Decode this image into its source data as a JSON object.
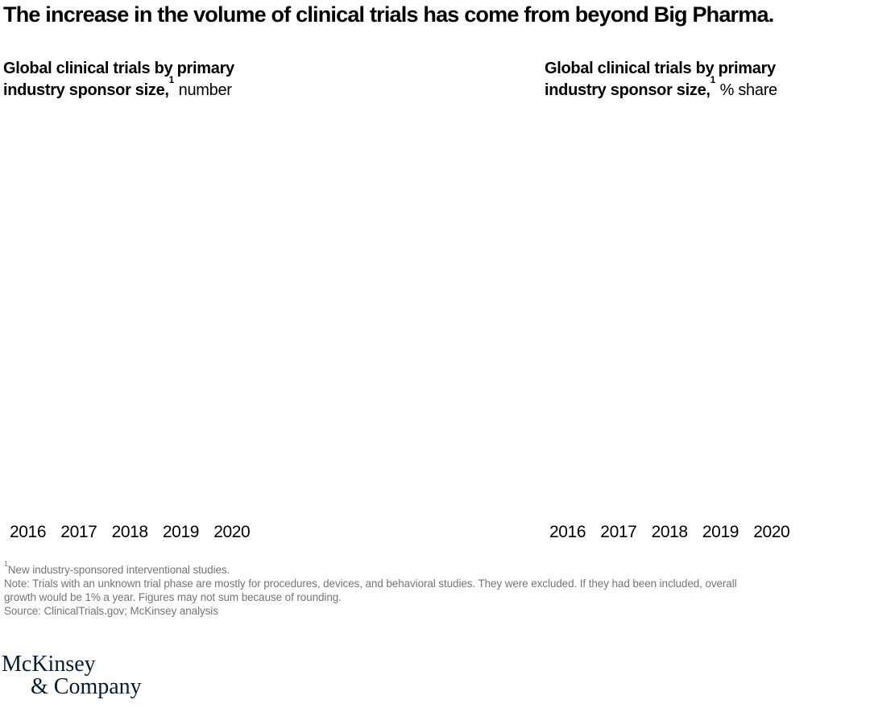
{
  "page_title": "The increase in the volume of clinical trials has come from beyond Big Pharma.",
  "charts": [
    {
      "heading": {
        "line1": "Global clinical trials by primary",
        "line2_bold": "industry sponsor size,",
        "sup": "1",
        "unit_suffix": " number"
      }
    },
    {
      "heading": {
        "line1": "Global clinical trials by primary",
        "line2_bold": "industry sponsor size,",
        "sup": "1",
        "unit_suffix": " % share"
      }
    }
  ],
  "chart_data": [
    {
      "type": "bar",
      "title": "Global clinical trials by primary industry sponsor size",
      "unit": "number",
      "categories": [
        "2016",
        "2017",
        "2018",
        "2019",
        "2020"
      ],
      "series": [],
      "note": "plot area is blank in the screenshot; only x-axis year labels are rendered"
    },
    {
      "type": "bar",
      "title": "Global clinical trials by primary industry sponsor size",
      "unit": "% share",
      "categories": [
        "2016",
        "2017",
        "2018",
        "2019",
        "2020"
      ],
      "series": [],
      "note": "plot area is blank in the screenshot; only x-axis year labels are rendered"
    }
  ],
  "footnotes": {
    "fn1_sup": "1",
    "fn1_text": "New industry-sponsored interventional studies.",
    "note_line1": " Note: Trials with an unknown trial phase are mostly for procedures, devices, and behavioral studies. They were excluded. If they had been included, overall",
    "note_line2": "growth would be 1% a year. Figures may not sum because of rounding.",
    "source": "Source: ClinicalTrials.gov; McKinsey analysis"
  },
  "logo": {
    "line1": "McKinsey",
    "line2": "& Company"
  },
  "colors": {
    "background": "#ffffff",
    "text": "#000000",
    "footnote_gray": "#757575",
    "logo_navy": "#051c2c"
  }
}
